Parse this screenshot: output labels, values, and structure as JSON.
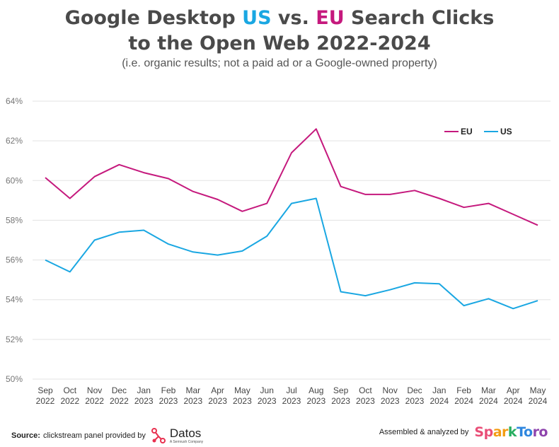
{
  "title": {
    "part1": "Google Desktop ",
    "us": "US",
    "part2": " vs. ",
    "eu": "EU",
    "part3": " Search Clicks",
    "line2": "to the Open Web 2022-2024"
  },
  "subtitle": "(i.e. organic results; not a paid ad or a Google-owned property)",
  "colors": {
    "eu": "#c5197d",
    "us": "#1aa7e2",
    "grid": "#e3e3e3",
    "axis_text": "#777777"
  },
  "chart_data": {
    "type": "line",
    "x_months": [
      "Sep",
      "Oct",
      "Nov",
      "Dec",
      "Jan",
      "Feb",
      "Mar",
      "Apr",
      "May",
      "Jun",
      "Jul",
      "Aug",
      "Sep",
      "Oct",
      "Nov",
      "Dec",
      "Jan",
      "Feb",
      "Mar",
      "Apr",
      "May"
    ],
    "x_years": [
      "2022",
      "2022",
      "2022",
      "2022",
      "2023",
      "2023",
      "2023",
      "2023",
      "2023",
      "2023",
      "2023",
      "2023",
      "2023",
      "2023",
      "2023",
      "2023",
      "2024",
      "2024",
      "2024",
      "2024",
      "2024"
    ],
    "series": [
      {
        "name": "EU",
        "color": "#c5197d",
        "values": [
          60.15,
          59.1,
          60.2,
          60.8,
          60.4,
          60.1,
          59.45,
          59.05,
          58.45,
          58.85,
          61.4,
          62.6,
          59.7,
          59.3,
          59.3,
          59.5,
          59.1,
          58.65,
          58.85,
          58.3,
          57.75
        ]
      },
      {
        "name": "US",
        "color": "#1aa7e2",
        "values": [
          56.0,
          55.4,
          57.0,
          57.4,
          57.5,
          56.8,
          56.4,
          56.25,
          56.45,
          57.2,
          58.85,
          59.1,
          54.4,
          54.2,
          54.5,
          54.85,
          54.8,
          53.7,
          54.05,
          53.55,
          53.95
        ]
      }
    ],
    "ylim": [
      50,
      64
    ],
    "yticks": [
      "50%",
      "52%",
      "54%",
      "56%",
      "58%",
      "60%",
      "62%",
      "64%"
    ],
    "ytick_values": [
      50,
      52,
      54,
      56,
      58,
      60,
      62,
      64
    ],
    "grid": true,
    "legend_position": "top-right"
  },
  "footer": {
    "source_label": "Source:",
    "source_text": "clickstream panel provided by",
    "datos_name": "Datos",
    "datos_tagline": "A Semrush Company",
    "right_text": "Assembled & analyzed by",
    "sparktoro": [
      "Sp",
      "ar",
      "k",
      "To",
      "ro"
    ]
  }
}
